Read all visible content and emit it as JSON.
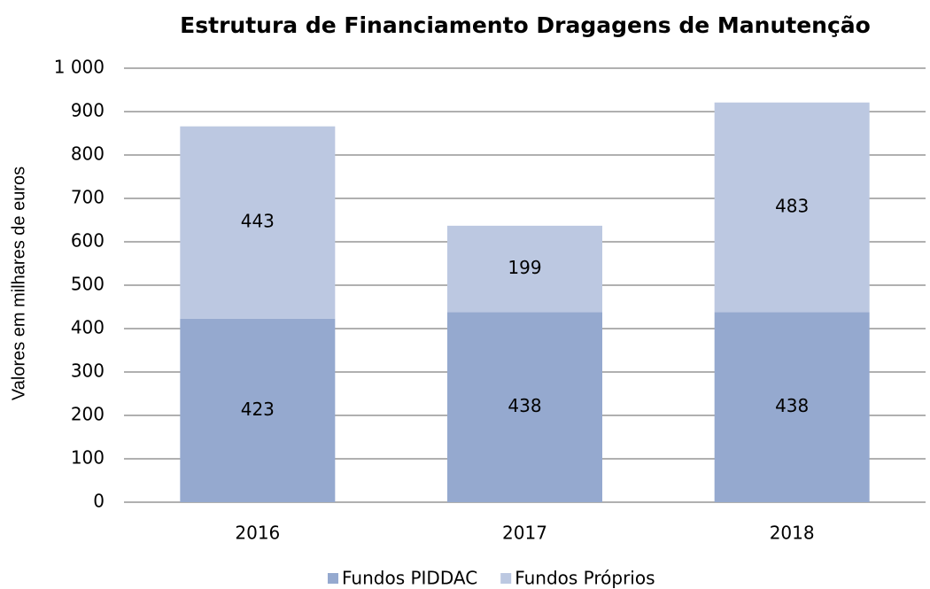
{
  "chart_data": {
    "type": "stacked_bar",
    "title": "Estrutura de Financiamento Dragagens de Manutenção",
    "y_label": "Valores em milhares de euros",
    "categories": [
      "2016",
      "2017",
      "2018"
    ],
    "series": [
      {
        "name": "Fundos PIDDAC",
        "color": "#95a9cf",
        "values": [
          423,
          438,
          438
        ]
      },
      {
        "name": "Fundos Próprios",
        "color": "#bcc8e1",
        "values": [
          443,
          199,
          483
        ]
      }
    ],
    "ylim": [
      0,
      1000
    ],
    "yticks": [
      0,
      100,
      200,
      300,
      400,
      500,
      600,
      700,
      800,
      900,
      {
        "value": 1000,
        "label": "1 000"
      }
    ],
    "grid": true,
    "legend": "bottom"
  }
}
